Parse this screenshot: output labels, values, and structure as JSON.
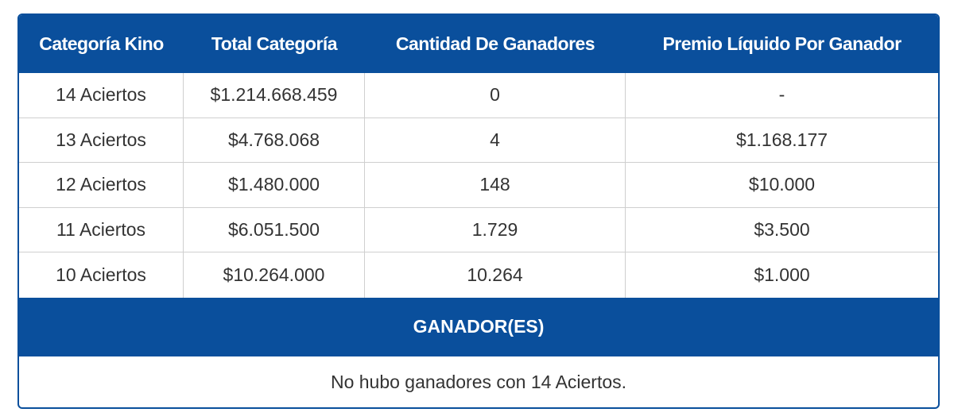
{
  "table": {
    "headers": [
      "Categoría Kino",
      "Total Categoría",
      "Cantidad De Ganadores",
      "Premio Líquido Por Ganador"
    ],
    "rows": [
      [
        "14 Aciertos",
        "$1.214.668.459",
        "0",
        "-"
      ],
      [
        "13 Aciertos",
        "$4.768.068",
        "4",
        "$1.168.177"
      ],
      [
        "12 Aciertos",
        "$1.480.000",
        "148",
        "$10.000"
      ],
      [
        "11 Aciertos",
        "$6.051.500",
        "1.729",
        "$3.500"
      ],
      [
        "10 Aciertos",
        "$10.264.000",
        "10.264",
        "$1.000"
      ]
    ]
  },
  "winners": {
    "title": "GANADOR(ES)",
    "message": "No hubo ganadores con 14 Aciertos."
  },
  "colors": {
    "header_bg": "#0a4f9c",
    "header_text": "#ffffff",
    "body_text": "#333333",
    "grid_line": "#cfcfcf"
  }
}
